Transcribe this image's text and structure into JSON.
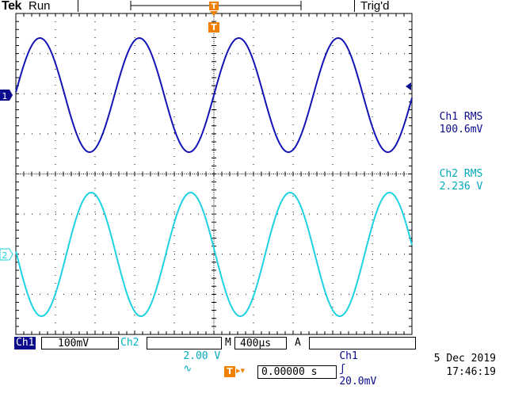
{
  "header": {
    "brand": "Tek",
    "run_state": "Run",
    "trigger_state": "Trig'd"
  },
  "markers": {
    "trigger_label": "T",
    "ch1_label": "1",
    "ch2_label": "2"
  },
  "measurements": {
    "ch1_rms_label": "Ch1 RMS",
    "ch1_rms_value": "100.6mV",
    "ch2_rms_label": "Ch2 RMS",
    "ch2_rms_value": "2.236 V"
  },
  "status_bar": {
    "ch1_name": "Ch1",
    "ch1_scale": "100mV",
    "ch2_name": "Ch2",
    "ch2_scale": "2.00 V",
    "ch2_bw_symbol": "∿",
    "timebase_mode": "M",
    "timebase_value": "400µs",
    "trigger_mode": "A",
    "trigger_source": "Ch1",
    "trigger_slope_symbol": "ʃ",
    "trigger_level": "20.0mV"
  },
  "footer": {
    "date": "5 Dec  2019",
    "time": "17:46:19",
    "trigger_position": "0.00000 s"
  },
  "colors": {
    "ch1": "#1414b4",
    "ch2": "#1ed2e1",
    "trigger": "#f08000",
    "grid": "#000000"
  },
  "icons": {
    "trigger_marker": "orange-t-marker",
    "ch1_ground": "ch1-ground-marker",
    "ch2_ground": "ch2-ground-marker",
    "trigger_level": "trigger-level-arrow"
  }
}
